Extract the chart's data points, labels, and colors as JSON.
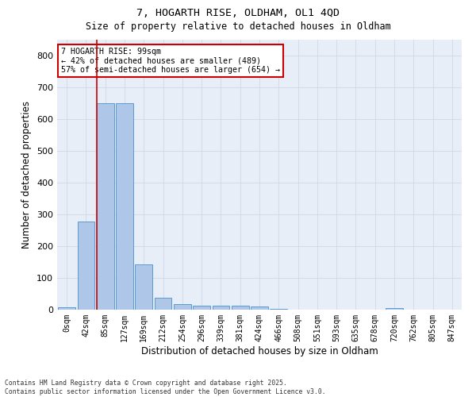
{
  "title_line1": "7, HOGARTH RISE, OLDHAM, OL1 4QD",
  "title_line2": "Size of property relative to detached houses in Oldham",
  "xlabel": "Distribution of detached houses by size in Oldham",
  "ylabel": "Number of detached properties",
  "footnote": "Contains HM Land Registry data © Crown copyright and database right 2025.\nContains public sector information licensed under the Open Government Licence v3.0.",
  "categories": [
    "0sqm",
    "42sqm",
    "85sqm",
    "127sqm",
    "169sqm",
    "212sqm",
    "254sqm",
    "296sqm",
    "339sqm",
    "381sqm",
    "424sqm",
    "466sqm",
    "508sqm",
    "551sqm",
    "593sqm",
    "635sqm",
    "678sqm",
    "720sqm",
    "762sqm",
    "805sqm",
    "847sqm"
  ],
  "values": [
    8,
    278,
    650,
    650,
    142,
    38,
    18,
    13,
    12,
    13,
    10,
    3,
    1,
    0,
    0,
    0,
    0,
    5,
    0,
    0,
    0
  ],
  "bar_color": "#aec6e8",
  "bar_edge_color": "#5b9bd5",
  "grid_color": "#d0d8e8",
  "background_color": "#e8eef8",
  "vline_x": 1.55,
  "vline_color": "#cc0000",
  "annotation_text": "7 HOGARTH RISE: 99sqm\n← 42% of detached houses are smaller (489)\n57% of semi-detached houses are larger (654) →",
  "annotation_box_color": "#cc0000",
  "ylim": [
    0,
    850
  ],
  "yticks": [
    0,
    100,
    200,
    300,
    400,
    500,
    600,
    700,
    800
  ]
}
